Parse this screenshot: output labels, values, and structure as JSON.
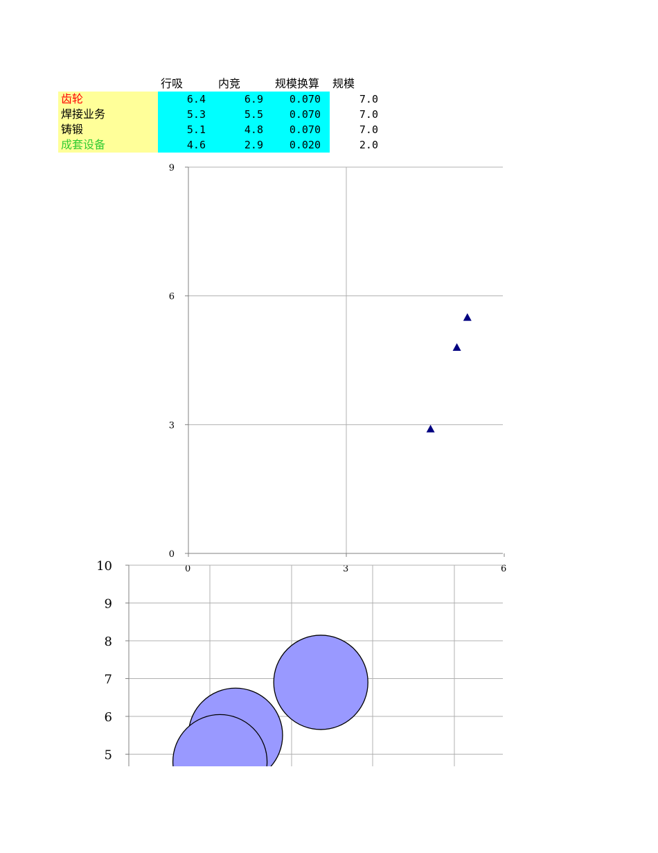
{
  "table": {
    "headers": [
      "行吸",
      "内竞",
      "规模换算",
      "规模"
    ],
    "rows": [
      {
        "name": "齿轮",
        "name_color": "#ff0000",
        "values": [
          "6.4",
          "6.9",
          "0.070",
          "7.0"
        ]
      },
      {
        "name": "焊接业务",
        "name_color": "#000000",
        "values": [
          "5.3",
          "5.5",
          "0.070",
          "7.0"
        ]
      },
      {
        "name": "铸锻",
        "name_color": "#000000",
        "values": [
          "5.1",
          "4.8",
          "0.070",
          "7.0"
        ]
      },
      {
        "name": "成套设备",
        "name_color": "#33cc33",
        "values": [
          "4.6",
          "2.9",
          "0.020",
          "2.0"
        ]
      }
    ]
  },
  "chart_data": [
    {
      "type": "scatter",
      "marker": "triangle",
      "marker_color": "#000080",
      "xlim": [
        0,
        6
      ],
      "ylim": [
        0,
        9
      ],
      "x_ticks": [
        "0",
        "3",
        "6"
      ],
      "y_ticks": [
        "0",
        "3",
        "6",
        "9"
      ],
      "grid": true,
      "points": [
        {
          "x": 5.3,
          "y": 5.5
        },
        {
          "x": 5.1,
          "y": 4.8
        },
        {
          "x": 4.6,
          "y": 2.9
        }
      ]
    },
    {
      "type": "bubble",
      "bubble_color": "#9999ff",
      "ylim": [
        4.7,
        10
      ],
      "y_ticks": [
        "5",
        "6",
        "7",
        "8",
        "9",
        "10"
      ],
      "grid": true,
      "points": [
        {
          "x": 6.4,
          "y": 6.9,
          "size": 7.0
        },
        {
          "x": 5.3,
          "y": 5.5,
          "size": 7.0
        },
        {
          "x": 5.1,
          "y": 4.8,
          "size": 7.0
        }
      ]
    }
  ]
}
